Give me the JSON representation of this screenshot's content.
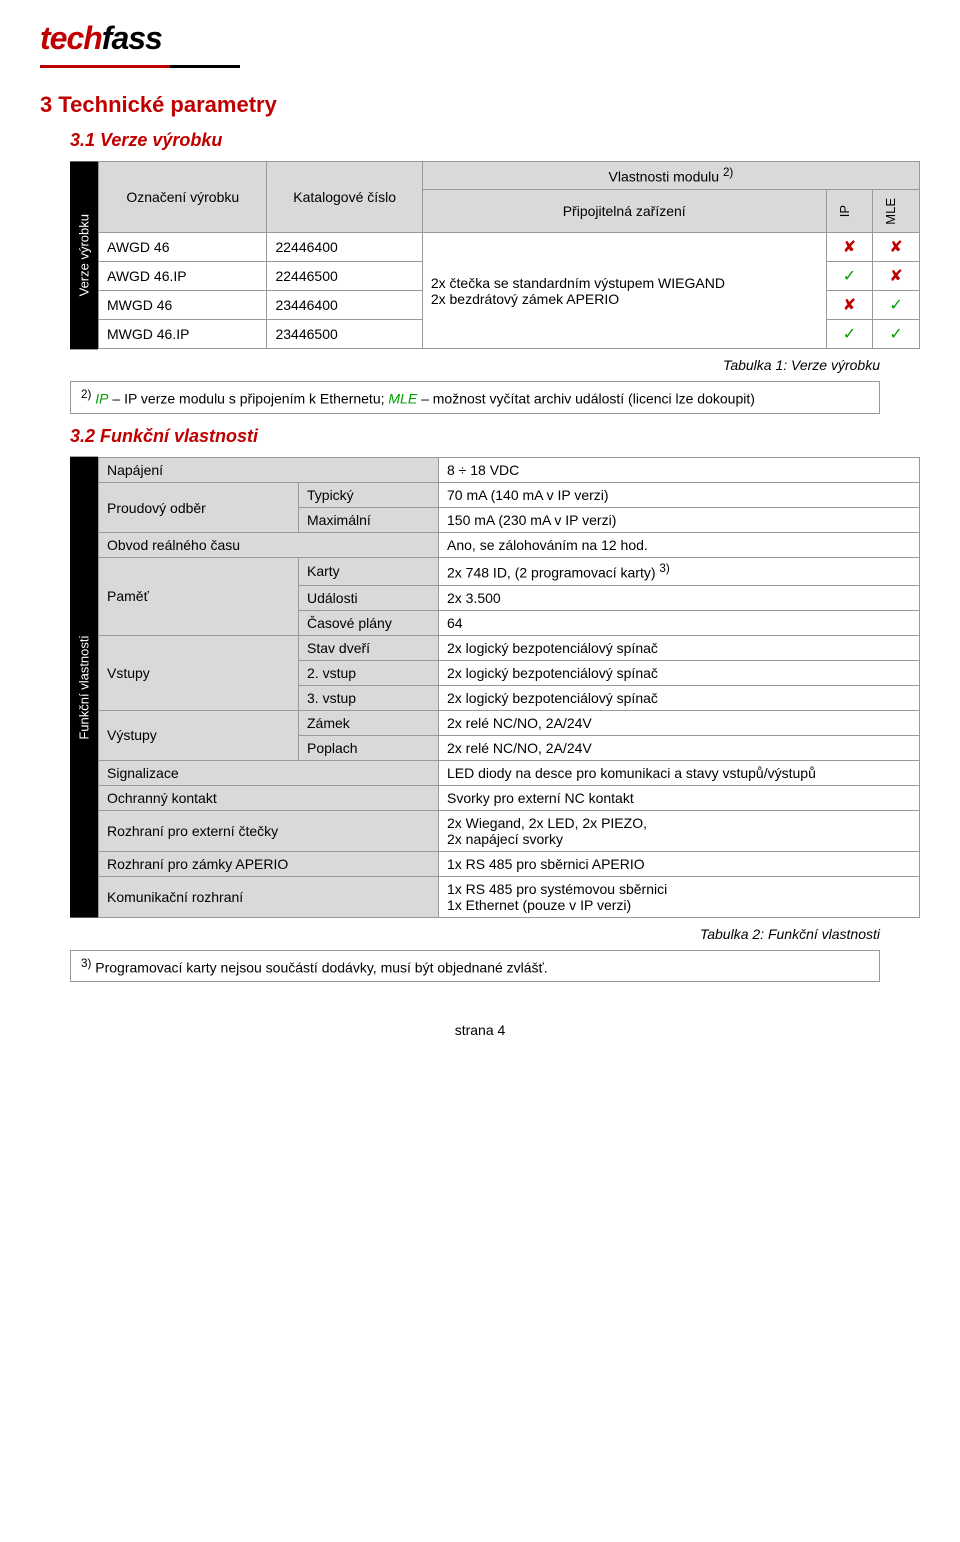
{
  "logo": {
    "text": "techfass",
    "red": "#c00000",
    "black": "#000000",
    "underline_red_width": 130,
    "underline_black_width": 70
  },
  "section3": {
    "title": "3  Technické parametry",
    "sub31": "3.1 Verze výrobku",
    "sub32": "3.2 Funkční vlastnosti"
  },
  "table1": {
    "side_label": "Verze výrobku",
    "hdr_oznaceni": "Označení výrobku",
    "hdr_katalog": "Katalogové číslo",
    "hdr_vlastnosti": "Vlastnosti modulu",
    "hdr_vlastnosti_sup": "2)",
    "hdr_pripoj": "Připojitelná zařízení",
    "hdr_ip": "IP",
    "hdr_mle": "MLE",
    "rows": [
      {
        "n": "AWGD 46",
        "k": "22446400"
      },
      {
        "n": "AWGD 46.IP",
        "k": "22446500"
      },
      {
        "n": "MWGD 46",
        "k": "23446400"
      },
      {
        "n": "MWGD 46.IP",
        "k": "23446500"
      }
    ],
    "pripoj_text": "2x čtečka se standardním výstupem WIEGAND\n2x bezdrátový zámek APERIO",
    "marks": [
      [
        "x",
        "x"
      ],
      [
        "v",
        "x"
      ],
      [
        "x",
        "v"
      ],
      [
        "v",
        "v"
      ]
    ],
    "mark_colors": {
      "v": "#00a000",
      "x": "#c00000"
    },
    "caption": "Tabulka 1: Verze výrobku",
    "footnote_sup": "2)",
    "footnote_ip": "IP",
    "footnote_ip_desc": " – IP verze modulu s připojením k Ethernetu; ",
    "footnote_mle": "MLE",
    "footnote_mle_desc": " – možnost vyčítat archiv událostí (licenci lze dokoupit)"
  },
  "table2": {
    "side_label": "Funkční vlastnosti",
    "rows": [
      {
        "a": "Napájení",
        "b": "",
        "c": "8 ÷ 18 VDC",
        "aspan": 1,
        "bhide": true
      },
      {
        "a": "Proudový odběr",
        "b": "Typický",
        "c": "70 mA (140 mA v IP verzi)",
        "aspan": 2
      },
      {
        "a": "",
        "b": "Maximální",
        "c": "150 mA (230 mA v IP verzi)"
      },
      {
        "a": "Obvod reálného času",
        "b": "",
        "c": "Ano, se zálohováním na 12 hod.",
        "aspan": 1,
        "bhide": true
      },
      {
        "a": "Paměť",
        "b": "Karty",
        "c": "2x 748 ID, (2 programovací karty) ",
        "csup": "3)",
        "aspan": 3
      },
      {
        "a": "",
        "b": "Události",
        "c": "2x 3.500"
      },
      {
        "a": "",
        "b": "Časové plány",
        "c": "64"
      },
      {
        "a": "Vstupy",
        "b": "Stav dveří",
        "c": "2x logický bezpotenciálový spínač",
        "aspan": 3
      },
      {
        "a": "",
        "b": "2. vstup",
        "c": "2x logický bezpotenciálový spínač"
      },
      {
        "a": "",
        "b": "3. vstup",
        "c": "2x logický bezpotenciálový spínač"
      },
      {
        "a": "Výstupy",
        "b": "Zámek",
        "c": "2x relé NC/NO, 2A/24V",
        "aspan": 2
      },
      {
        "a": "",
        "b": "Poplach",
        "c": "2x relé NC/NO, 2A/24V"
      },
      {
        "a": "Signalizace",
        "b": "",
        "c": "LED diody na desce pro komunikaci a stavy vstupů/výstupů",
        "aspan": 1,
        "bhide": true
      },
      {
        "a": "Ochranný kontakt",
        "b": "",
        "c": "Svorky pro externí NC kontakt",
        "aspan": 1,
        "bhide": true
      },
      {
        "a": "Rozhraní pro externí čtečky",
        "b": "",
        "c": "2x Wiegand, 2x LED, 2x PIEZO,\n2x napájecí svorky",
        "aspan": 1,
        "bhide": true
      },
      {
        "a": "Rozhraní pro zámky APERIO",
        "b": "",
        "c": "1x RS 485 pro sběrnici APERIO",
        "aspan": 1,
        "bhide": true
      },
      {
        "a": "Komunikační rozhraní",
        "b": "",
        "c": "1x RS 485 pro systémovou sběrnici\n1x Ethernet (pouze v IP verzi)",
        "aspan": 1,
        "bhide": true
      }
    ],
    "col_widths": [
      "200px",
      "140px",
      "auto"
    ],
    "caption": "Tabulka 2: Funkční vlastnosti",
    "footnote_sup": "3)",
    "footnote_text": " Programovací karty nejsou součástí dodávky, musí být objednané zvlášť."
  },
  "footer": {
    "text": "strana 4"
  },
  "colors": {
    "heading": "#c00000",
    "grey_bg": "#d9d9d9",
    "border": "#999999",
    "green": "#00a000"
  }
}
